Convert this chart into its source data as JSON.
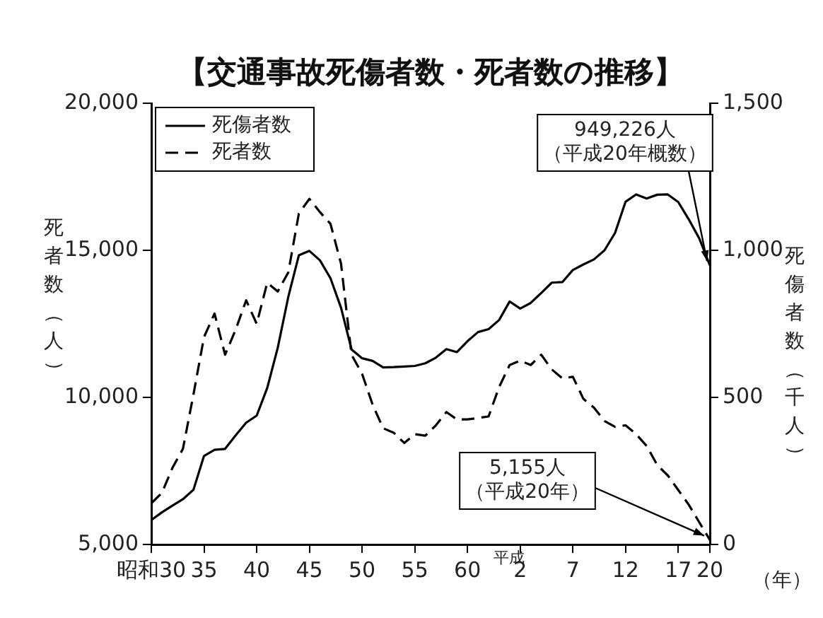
{
  "chart_data": {
    "type": "line",
    "title": "【交通事故死傷者数・死者数の推移】",
    "xlabel": "（年）",
    "ylabel": "死者数（人）",
    "y2label": "死傷者数（千人）",
    "categories": [
      "昭和30",
      null,
      null,
      null,
      null,
      "35",
      null,
      null,
      null,
      null,
      "40",
      null,
      null,
      null,
      null,
      "45",
      null,
      null,
      null,
      null,
      "50",
      null,
      null,
      null,
      null,
      "55",
      null,
      null,
      null,
      null,
      "60",
      null,
      null,
      null,
      null,
      "2",
      null,
      null,
      null,
      null,
      "7",
      null,
      null,
      null,
      null,
      "12",
      null,
      null,
      null,
      null,
      "17",
      null,
      null,
      "20"
    ],
    "series": [
      {
        "name": "死傷者数",
        "color": "#000000",
        "line_style": "solid",
        "axis": "y2",
        "values": [
          83,
          109,
          132,
          154,
          186,
          301,
          322,
          325,
          371,
          414,
          438,
          532,
          669,
          842,
          983,
          998,
          966,
          905,
          805,
          663,
          633,
          624,
          602,
          603,
          605,
          607,
          616,
          635,
          664,
          654,
          691,
          722,
          732,
          763,
          826,
          802,
          821,
          855,
          890,
          892,
          933,
          952,
          969,
          1000,
          1059,
          1165,
          1190,
          1176,
          1189,
          1190,
          1164,
          1105,
          1040,
          949
        ]
      },
      {
        "name": "死者数",
        "color": "#000000",
        "line_style": "dashed",
        "values": [
          6400,
          6750,
          7600,
          8250,
          10100,
          12050,
          12850,
          11450,
          12300,
          13300,
          12500,
          13900,
          13600,
          14250,
          16250,
          16750,
          16300,
          15900,
          14550,
          11450,
          10800,
          9750,
          8950,
          8800,
          8450,
          8750,
          8700,
          9050,
          9500,
          9250,
          9250,
          9300,
          9350,
          10350,
          11100,
          11250,
          11100,
          11450,
          10950,
          10650,
          10700,
          9950,
          9650,
          9200,
          9000,
          9050,
          8750,
          8350,
          7700,
          7350,
          6850,
          6350,
          5750,
          5155
        ]
      }
    ],
    "ylim": [
      5000,
      20000
    ],
    "yticks": [
      {
        "value": 5000,
        "label": "5,000"
      },
      {
        "value": 10000,
        "label": "10,000"
      },
      {
        "value": 15000,
        "label": "15,000"
      },
      {
        "value": 20000,
        "label": "20,000"
      }
    ],
    "y2lim": [
      0,
      1500
    ],
    "y2ticks": [
      0,
      500,
      {
        "value": 1000,
        "label": "1,000"
      },
      {
        "value": 1500,
        "label": "1,500"
      }
    ],
    "annotations": [
      "平成",
      {
        "text": "949,226人（平成20年概数）",
        "x": "20",
        "y": 14490
      },
      {
        "text": "5,155人（平成20年）",
        "x": "20",
        "y": 5155
      }
    ],
    "legend": "top left",
    "grid": false,
    "marker": "none"
  }
}
